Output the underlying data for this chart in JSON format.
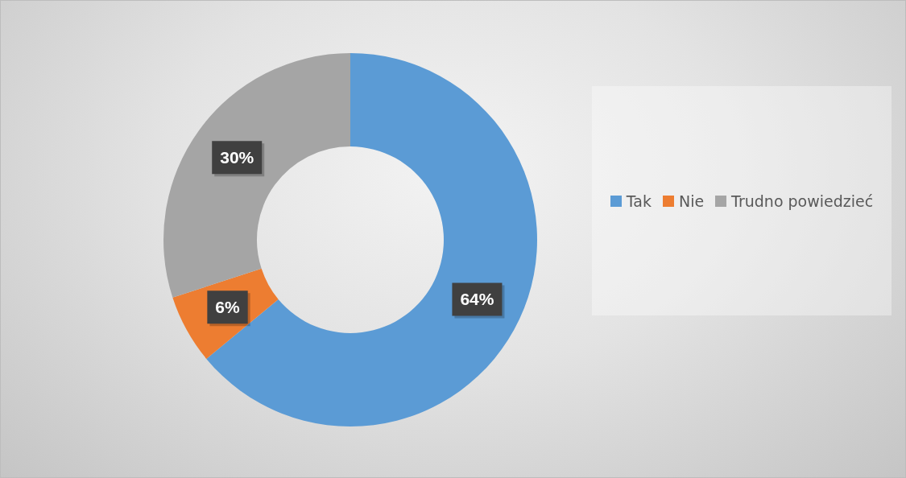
{
  "chart_data": {
    "type": "donut",
    "categories": [
      "Tak",
      "Nie",
      "Trudno powiedzieć"
    ],
    "values": [
      64,
      6,
      30
    ],
    "colors": [
      "#5b9bd5",
      "#ed7d31",
      "#a5a5a5"
    ],
    "value_labels": [
      "64%",
      "6%",
      "30%"
    ],
    "legend": "right"
  }
}
